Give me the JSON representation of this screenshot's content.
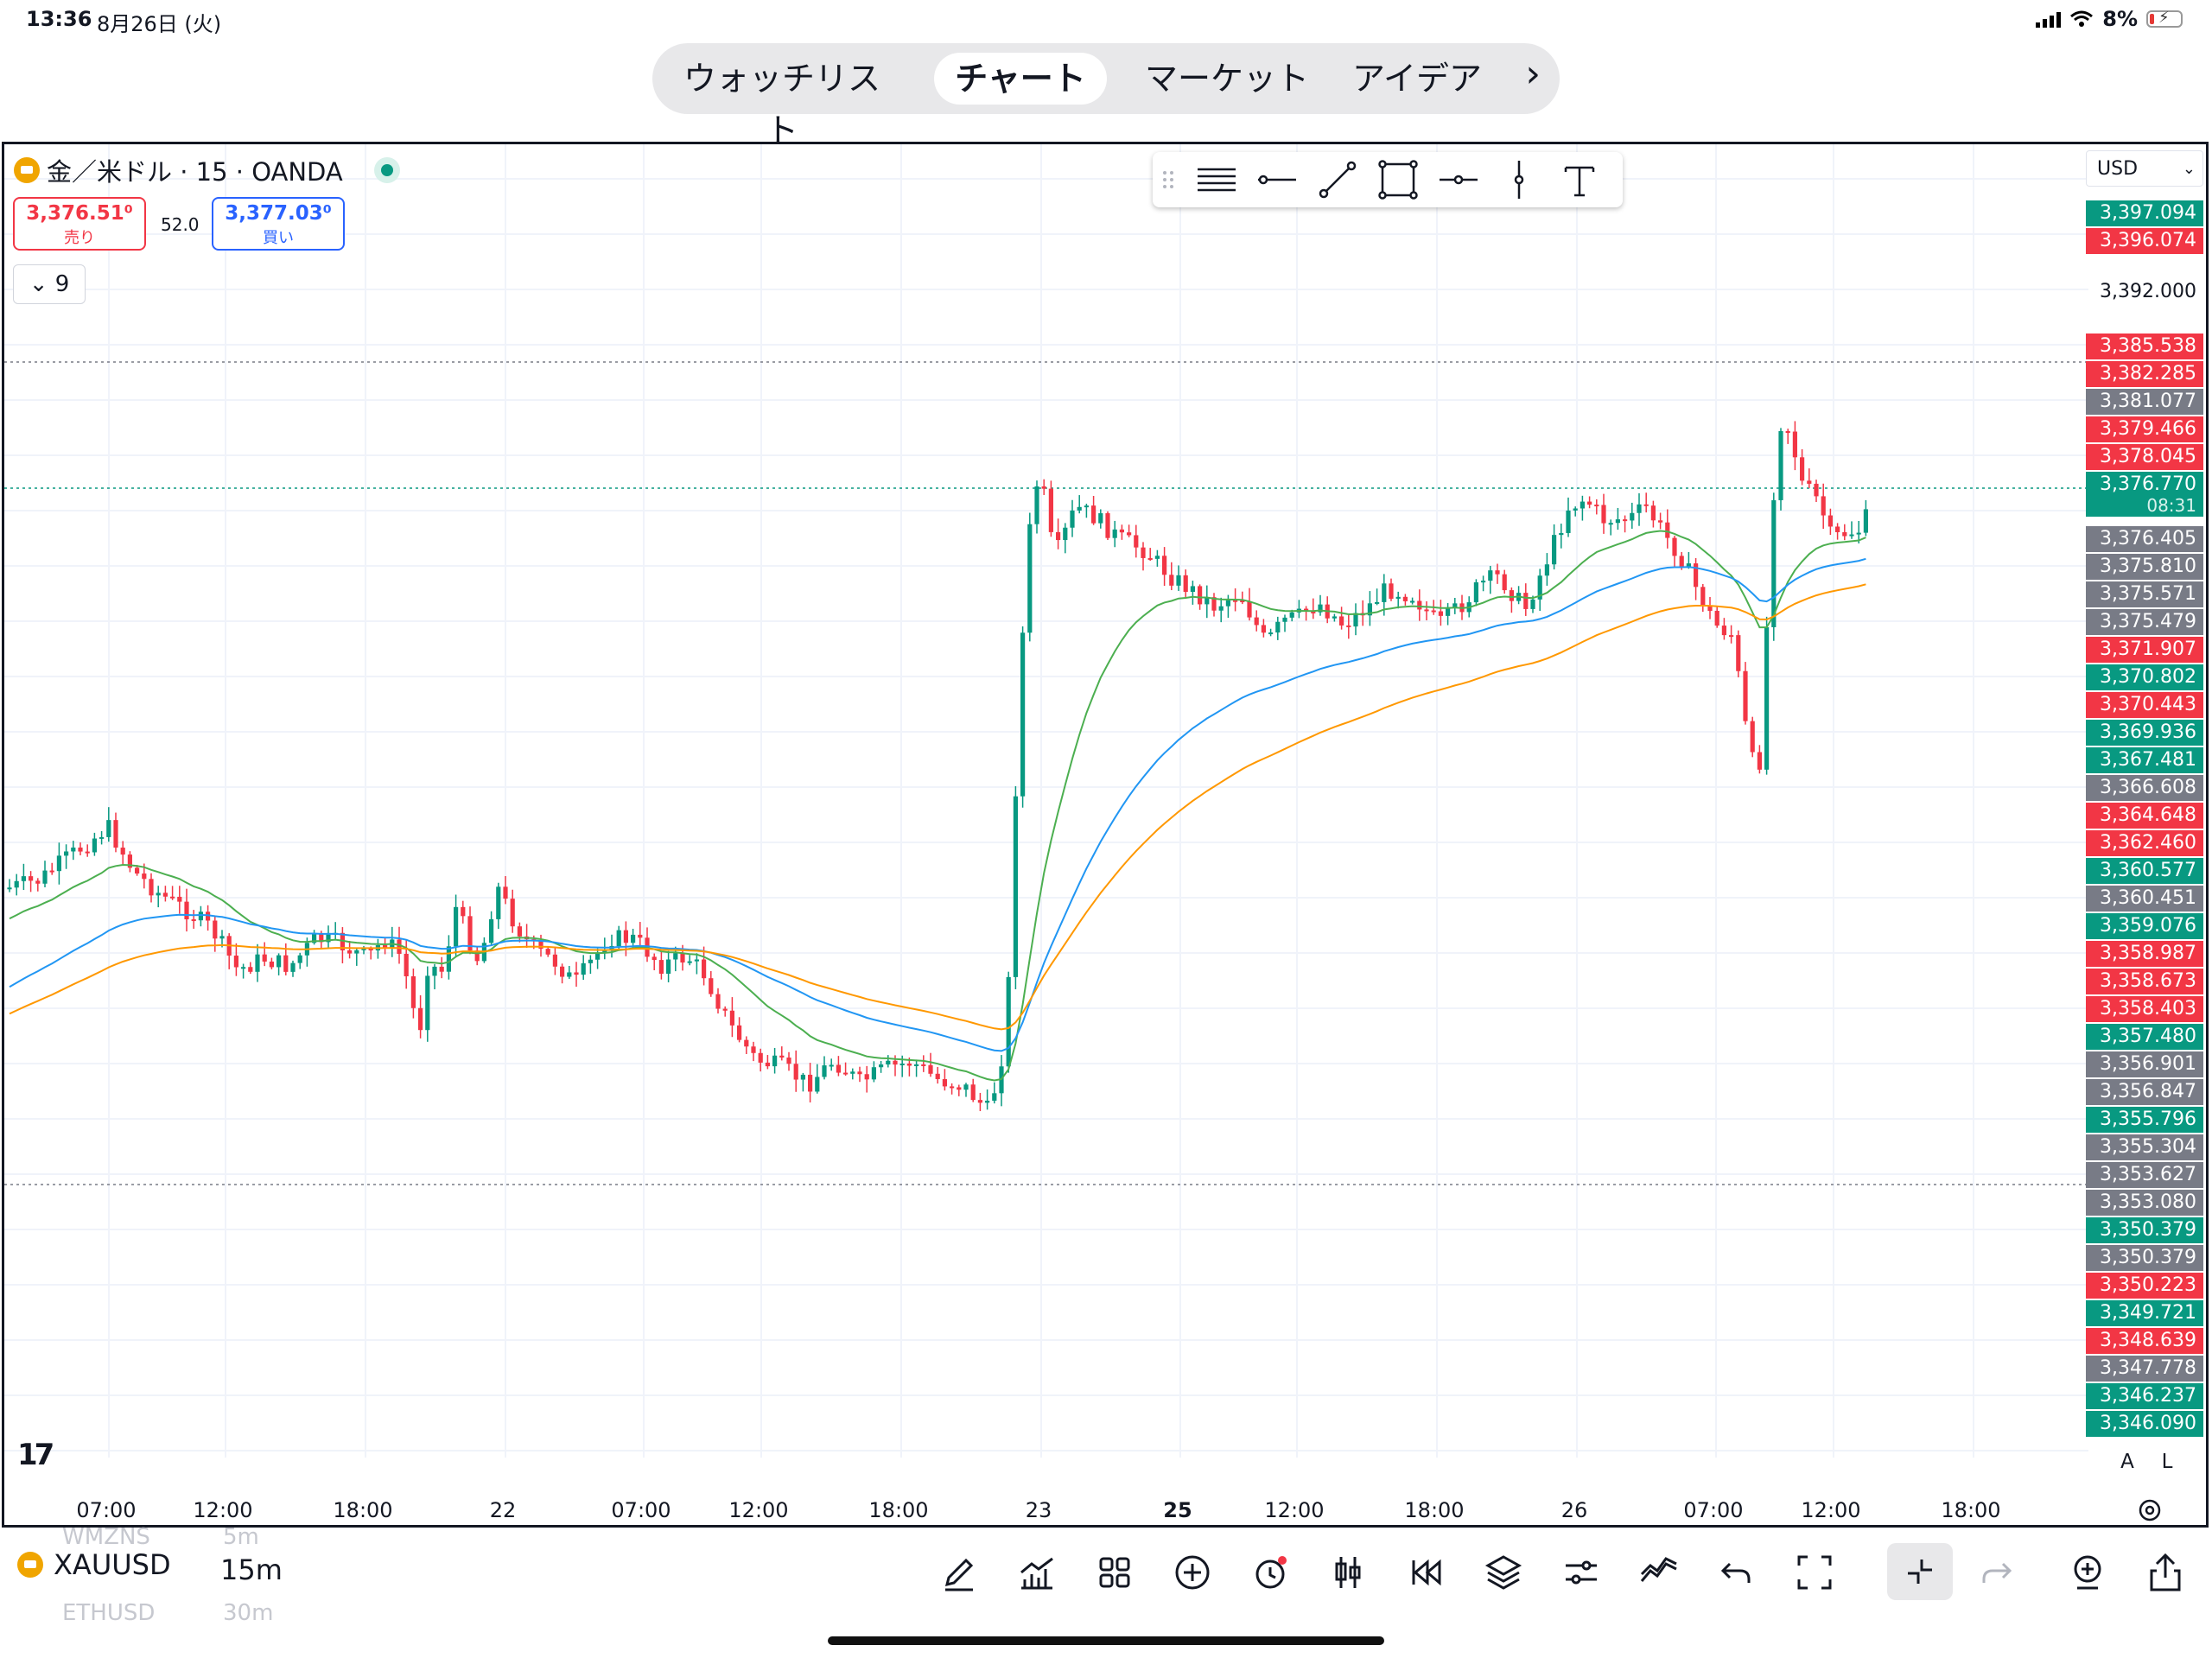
{
  "status_bar": {
    "time": "13:36",
    "date": "8月26日 (火)",
    "battery": "8%"
  },
  "nav": {
    "tabs": [
      "ウォッチリスト",
      "チャート",
      "マーケット",
      "アイデア"
    ],
    "active": "チャート"
  },
  "chart": {
    "legend": {
      "symbol_name": "金／米ドル · 15 · OANDA"
    },
    "sell": {
      "price": "3,376.51⁰",
      "label": "売り"
    },
    "buy": {
      "price": "3,377.03⁰",
      "label": "買い"
    },
    "spread": "52.0",
    "indicators_count": "9",
    "currency": "USD",
    "price_labels": [
      {
        "text": "3,397.094",
        "kind": "green"
      },
      {
        "text": "3,396.074",
        "kind": "red"
      },
      {
        "text": "3,392.000",
        "kind": "plain"
      },
      {
        "text": "3,385.538",
        "kind": "red"
      },
      {
        "text": "3,382.285",
        "kind": "red"
      },
      {
        "text": "3,381.077",
        "kind": "grey"
      },
      {
        "text": "3,379.466",
        "kind": "red"
      },
      {
        "text": "3,378.045",
        "kind": "red"
      },
      {
        "text": "3,376.770",
        "kind": "green"
      },
      {
        "text": "3,376.405",
        "kind": "grey"
      },
      {
        "text": "3,375.810",
        "kind": "grey"
      },
      {
        "text": "3,375.571",
        "kind": "grey"
      },
      {
        "text": "3,375.479",
        "kind": "grey"
      },
      {
        "text": "3,371.907",
        "kind": "red"
      },
      {
        "text": "3,370.802",
        "kind": "green"
      },
      {
        "text": "3,370.443",
        "kind": "red"
      },
      {
        "text": "3,369.936",
        "kind": "green"
      },
      {
        "text": "3,367.481",
        "kind": "green"
      },
      {
        "text": "3,366.608",
        "kind": "grey"
      },
      {
        "text": "3,364.648",
        "kind": "red"
      },
      {
        "text": "3,362.460",
        "kind": "red"
      },
      {
        "text": "3,360.577",
        "kind": "green"
      },
      {
        "text": "3,360.451",
        "kind": "grey"
      },
      {
        "text": "3,359.076",
        "kind": "green"
      },
      {
        "text": "3,358.987",
        "kind": "red"
      },
      {
        "text": "3,358.673",
        "kind": "red"
      },
      {
        "text": "3,358.403",
        "kind": "red"
      },
      {
        "text": "3,357.480",
        "kind": "green"
      },
      {
        "text": "3,356.901",
        "kind": "grey"
      },
      {
        "text": "3,356.847",
        "kind": "grey"
      },
      {
        "text": "3,355.796",
        "kind": "green"
      },
      {
        "text": "3,355.304",
        "kind": "grey"
      },
      {
        "text": "3,353.627",
        "kind": "grey"
      },
      {
        "text": "3,353.080",
        "kind": "grey"
      },
      {
        "text": "3,350.379",
        "kind": "green"
      },
      {
        "text": "3,350.379",
        "kind": "grey"
      },
      {
        "text": "3,350.223",
        "kind": "red"
      },
      {
        "text": "3,349.721",
        "kind": "green"
      },
      {
        "text": "3,348.639",
        "kind": "red"
      },
      {
        "text": "3,347.778",
        "kind": "grey"
      },
      {
        "text": "3,346.237",
        "kind": "green"
      },
      {
        "text": "3,346.090",
        "kind": "green"
      }
    ],
    "countdown": "08:31",
    "time_labels": [
      "07:00",
      "12:00",
      "18:00",
      "22",
      "07:00",
      "12:00",
      "18:00",
      "23",
      "25",
      "12:00",
      "18:00",
      "26",
      "07:00",
      "12:00",
      "18:00"
    ],
    "scale_buttons": [
      "A",
      "L"
    ]
  },
  "bottom_bar": {
    "symbol": "XAUUSD",
    "timeframe": "15m",
    "ghost_symbol_prev": "WMZNS",
    "ghost_tf_prev": "5m",
    "ghost_symbol_next": "ETHUSD",
    "ghost_tf_next": "30m",
    "tools": [
      "pencil-icon",
      "chart-type-icon",
      "grid-icon",
      "add-circle-icon",
      "alert-icon",
      "candles-icon",
      "replay-icon",
      "layers-icon",
      "settings-sliders-icon",
      "indicators-icon",
      "undo-icon",
      "fullscreen-icon",
      "collapse-icon",
      "redo-icon",
      "add-layer-icon",
      "share-icon"
    ]
  },
  "colors": {
    "up": "#089981",
    "down": "#f23645",
    "ma_fast": "#4caf50",
    "ma_mid": "#2196f3",
    "ma_slow": "#ff9800",
    "grid": "#f0f3fa"
  }
}
